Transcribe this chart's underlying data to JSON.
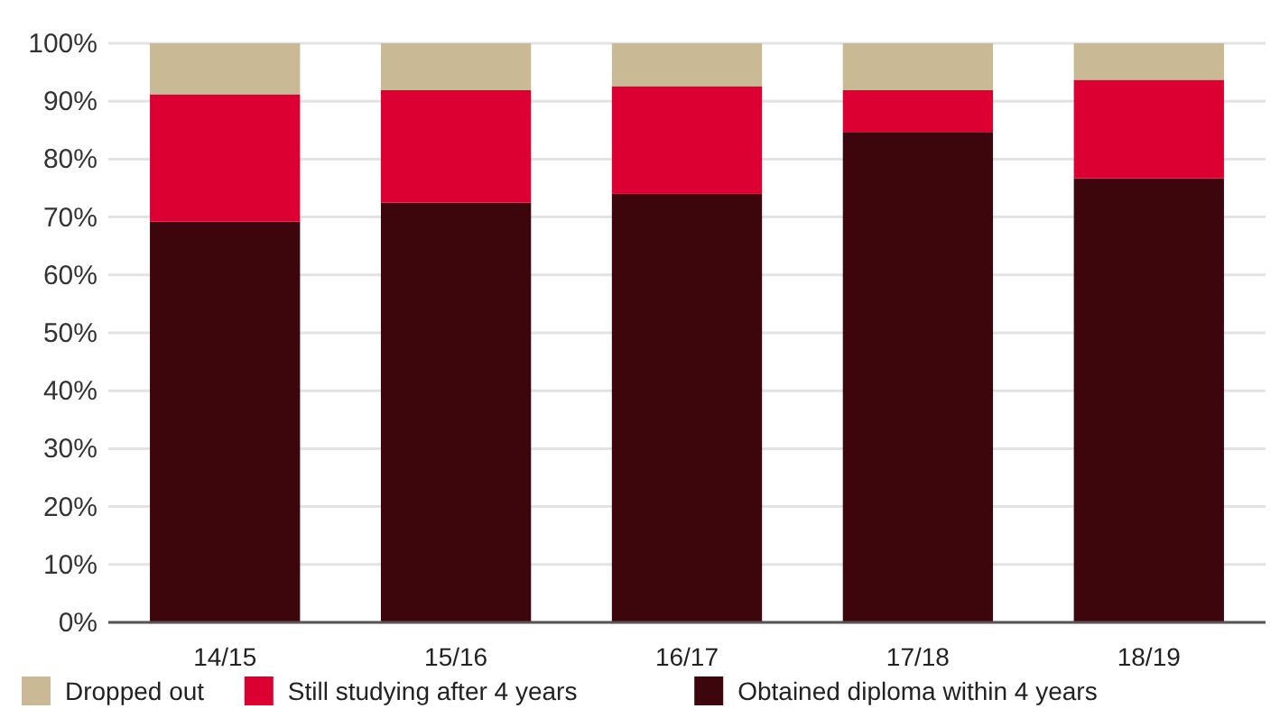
{
  "chart_data": {
    "type": "bar",
    "stacked": true,
    "categories": [
      "14/15",
      "15/16",
      "16/17",
      "17/18",
      "18/19"
    ],
    "series": [
      {
        "name": "Obtained diploma within 4 years",
        "color": "#3d060d",
        "values": [
          69.2,
          72.5,
          74.0,
          84.7,
          76.7
        ]
      },
      {
        "name": "Still studying after 4 years",
        "color": "#dc0032",
        "values": [
          22.0,
          19.4,
          18.6,
          7.2,
          17.0
        ]
      },
      {
        "name": "Dropped out",
        "color": "#c9b994",
        "values": [
          8.8,
          8.1,
          7.4,
          8.1,
          6.3
        ]
      }
    ],
    "ylim": [
      0,
      100
    ],
    "yticks": [
      {
        "value": 0,
        "label": "0%"
      },
      {
        "value": 10,
        "label": "10%"
      },
      {
        "value": 20,
        "label": "20%"
      },
      {
        "value": 30,
        "label": "30%"
      },
      {
        "value": 40,
        "label": "40%"
      },
      {
        "value": 50,
        "label": "50%"
      },
      {
        "value": 60,
        "label": "60%"
      },
      {
        "value": 70,
        "label": "70%"
      },
      {
        "value": 80,
        "label": "80%"
      },
      {
        "value": 90,
        "label": "90%"
      },
      {
        "value": 100,
        "label": "100%"
      }
    ],
    "grid": "y",
    "legend": "bottom left"
  }
}
